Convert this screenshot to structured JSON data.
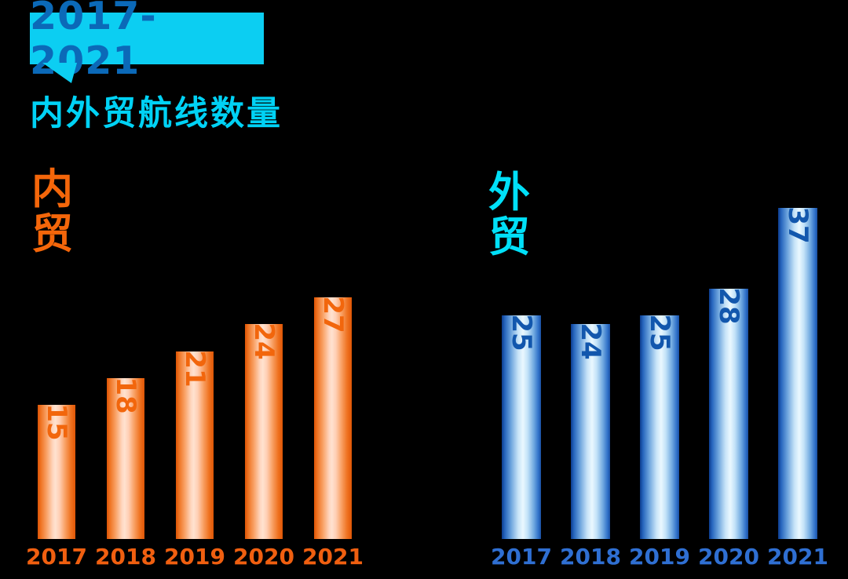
{
  "background_color": "#000000",
  "badge": {
    "label": "2017-2021",
    "bg_color": "#0CCEF2",
    "text_color": "#0B69B8"
  },
  "title": "内外贸航线数量",
  "title_color": "#00D2F5",
  "chart_data": [
    {
      "type": "bar",
      "name": "内贸",
      "orientation": "vertical",
      "categories": [
        "2017",
        "2018",
        "2019",
        "2020",
        "2021"
      ],
      "values": [
        15,
        18,
        21,
        24,
        27
      ],
      "series_label_color": "#F4660A",
      "value_label_color": "#F2660C",
      "tick_label_color": "#F05F10",
      "bar_style": "orange cylinder gradient, edges #DF5606, highlight #FFE2D0",
      "value_labels_rotated_90deg": true,
      "legend_position": "top-left",
      "grid": false
    },
    {
      "type": "bar",
      "name": "外贸",
      "orientation": "vertical",
      "categories": [
        "2017",
        "2018",
        "2019",
        "2020",
        "2021"
      ],
      "values": [
        25,
        24,
        25,
        28,
        37
      ],
      "series_label_color": "#00E0F8",
      "value_label_color": "#1257AD",
      "tick_label_color": "#2F6FD2",
      "bar_style": "blue cylinder gradient, edges #0C3B8C/#1A4FA0, highlight #EAF8FF",
      "value_labels_rotated_90deg": true,
      "legend_position": "top-left",
      "grid": false
    }
  ]
}
